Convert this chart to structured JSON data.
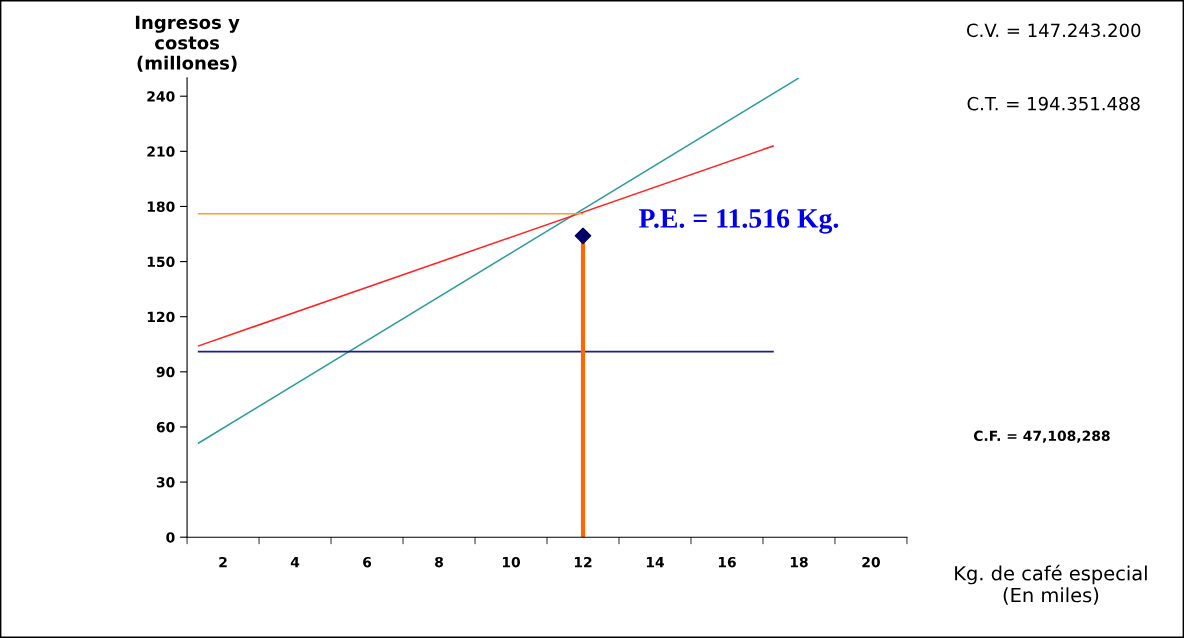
{
  "chart_data": {
    "type": "line",
    "xlabel": "Kg. de café especial\n(En miles)",
    "ylabel": "Ingresos y\ncostos\n(millones)",
    "xlim": [
      1,
      21
    ],
    "xticks": [
      {
        "value": 1,
        "label": null
      },
      2,
      {
        "value": 3,
        "label": null
      },
      4,
      {
        "value": 5,
        "label": null
      },
      6,
      {
        "value": 7,
        "label": null
      },
      8,
      {
        "value": 9,
        "label": null
      },
      10,
      {
        "value": 11,
        "label": null
      },
      12,
      {
        "value": 13,
        "label": null
      },
      14,
      {
        "value": 15,
        "label": null
      },
      16,
      {
        "value": 17,
        "label": null
      },
      18,
      {
        "value": 19,
        "label": null
      },
      20,
      {
        "value": 21,
        "label": null
      }
    ],
    "ylim": [
      0,
      250
    ],
    "yticks": [
      0,
      30,
      60,
      90,
      120,
      150,
      180,
      210,
      240
    ],
    "grid": false,
    "series": [
      {
        "color": "#2a9d9a",
        "x": [
          1.3,
          18
        ],
        "values": [
          51,
          250
        ]
      },
      {
        "color": "#ff2020",
        "x": [
          1.3,
          17.3
        ],
        "values": [
          104,
          213
        ]
      },
      {
        "color": "#1a1a9c",
        "x": [
          1.3,
          17.3
        ],
        "values": [
          101,
          101
        ]
      },
      {
        "color": "#ffa020",
        "x": [
          1.3,
          12
        ],
        "values": [
          176,
          176
        ]
      },
      {
        "color": "#ff6600",
        "x": [
          12,
          12
        ],
        "values": [
          0,
          164
        ]
      },
      {
        "type": "scatter",
        "color": "#000066",
        "marker": "diamond",
        "x": [
          12
        ],
        "values": [
          164
        ]
      }
    ],
    "annotations": [
      {
        "text": "P.E. = 11.516 Kg.",
        "x": 12,
        "y": 164
      },
      "C.V. = 147.243.200",
      "C.T. = 194.351.488",
      "C.F. = 47,108,288"
    ]
  }
}
